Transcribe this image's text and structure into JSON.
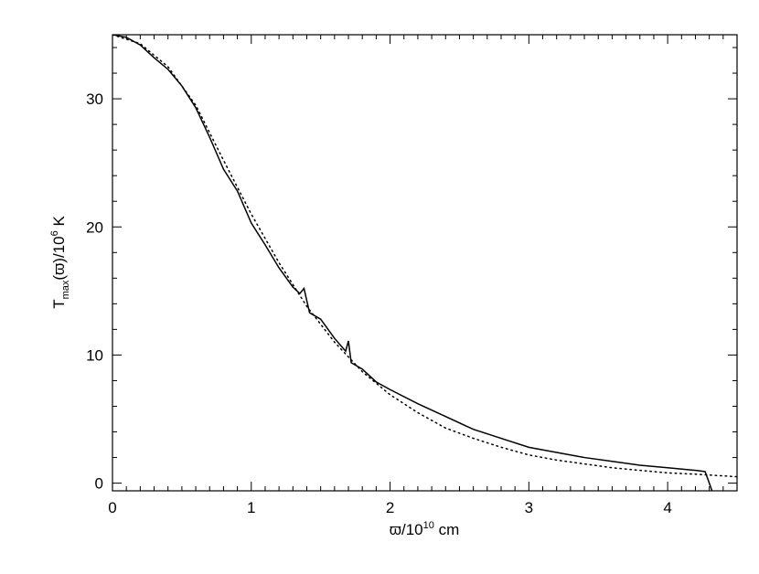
{
  "chart_data": {
    "type": "line",
    "xlabel": {
      "main": "ϖ/10",
      "sup": "10",
      "tail": " cm"
    },
    "ylabel": {
      "main": "T",
      "sub": "max",
      "mid": "(ϖ)/10",
      "sup": "6",
      "tail": " K"
    },
    "xlim": [
      0,
      4.5
    ],
    "ylim": [
      -0.6,
      35
    ],
    "xticks": [
      0,
      1,
      2,
      3,
      4
    ],
    "yticks": [
      0,
      10,
      20,
      30
    ],
    "series": [
      {
        "color": "#000000",
        "dash": "solid",
        "x": [
          0,
          0.1,
          0.2,
          0.3,
          0.4,
          0.5,
          0.6,
          0.7,
          0.8,
          0.9,
          1.0,
          1.1,
          1.2,
          1.3,
          1.35,
          1.38,
          1.42,
          1.5,
          1.6,
          1.68,
          1.7,
          1.72,
          1.8,
          1.9,
          2.0,
          2.2,
          2.4,
          2.6,
          2.8,
          3.0,
          3.2,
          3.4,
          3.6,
          3.8,
          4.0,
          4.2,
          4.27,
          4.32
        ],
        "values": [
          35.0,
          34.8,
          34.2,
          33.2,
          32.3,
          31.0,
          29.3,
          27.0,
          24.5,
          22.8,
          20.3,
          18.6,
          16.8,
          15.3,
          14.8,
          15.2,
          13.3,
          12.8,
          11.3,
          10.3,
          11.1,
          9.4,
          8.9,
          7.9,
          7.3,
          6.2,
          5.2,
          4.2,
          3.5,
          2.8,
          2.4,
          2.0,
          1.7,
          1.4,
          1.2,
          1.0,
          0.9,
          -0.6
        ]
      },
      {
        "color": "#000000",
        "dash": "dotted",
        "x": [
          0,
          0.2,
          0.4,
          0.6,
          0.8,
          1.0,
          1.2,
          1.4,
          1.6,
          1.8,
          2.0,
          2.2,
          2.4,
          2.6,
          2.8,
          3.0,
          3.2,
          3.4,
          3.6,
          3.8,
          4.0,
          4.2,
          4.5
        ],
        "values": [
          35.0,
          34.3,
          32.5,
          29.5,
          25.2,
          21.0,
          17.2,
          13.8,
          11.0,
          8.7,
          6.9,
          5.5,
          4.3,
          3.5,
          2.8,
          2.2,
          1.8,
          1.5,
          1.2,
          1.0,
          0.8,
          0.7,
          0.5
        ]
      }
    ]
  }
}
